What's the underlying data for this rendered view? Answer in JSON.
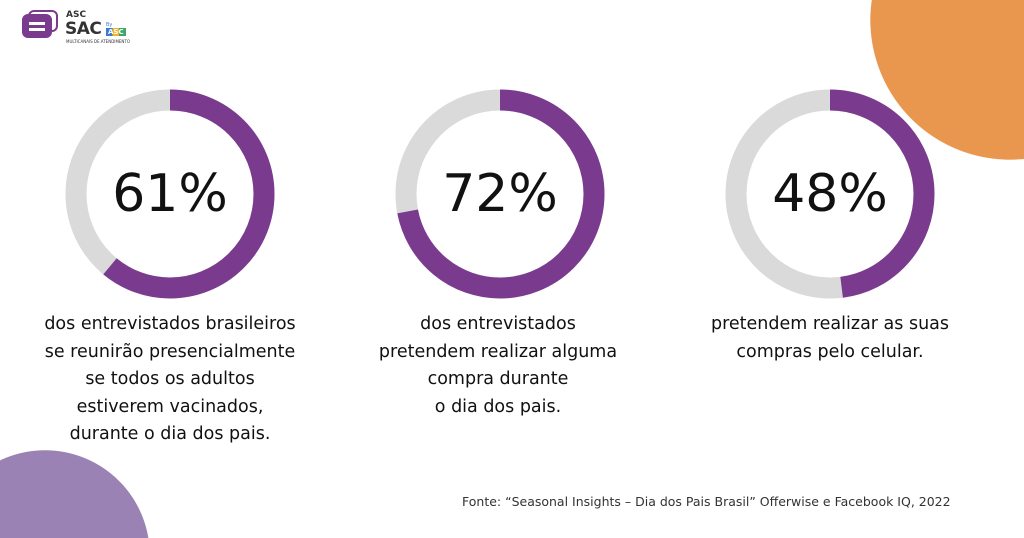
{
  "logo": {
    "top": "ASC",
    "main": "SAC",
    "by": "By",
    "badge": "ASC",
    "tagline": "MULTICANAIS DE ATENDIMENTO"
  },
  "colors": {
    "accent": "#7a3b8f",
    "track": "#dadada",
    "orange": "#e9964f",
    "lilac": "#9a82b4"
  },
  "chart_data": [
    {
      "type": "pie",
      "variant": "donut",
      "value": 61,
      "label": "61%",
      "max": 100,
      "description": [
        "dos entrevistados brasileiros",
        "se reunirão presencialmente",
        "se todos os adultos",
        "estiverem vacinados,",
        "durante o dia dos pais."
      ]
    },
    {
      "type": "pie",
      "variant": "donut",
      "value": 72,
      "label": "72%",
      "max": 100,
      "description": [
        "dos entrevistados",
        "pretendem realizar alguma",
        "compra durante",
        "o dia dos pais."
      ]
    },
    {
      "type": "pie",
      "variant": "donut",
      "value": 48,
      "label": "48%",
      "max": 100,
      "description": [
        "pretendem realizar as suas",
        "compras pelo celular."
      ]
    }
  ],
  "source": "Fonte:  “Seasonal Insights – Dia dos Pais Brasil” Offerwise e Facebook IQ, 2022"
}
